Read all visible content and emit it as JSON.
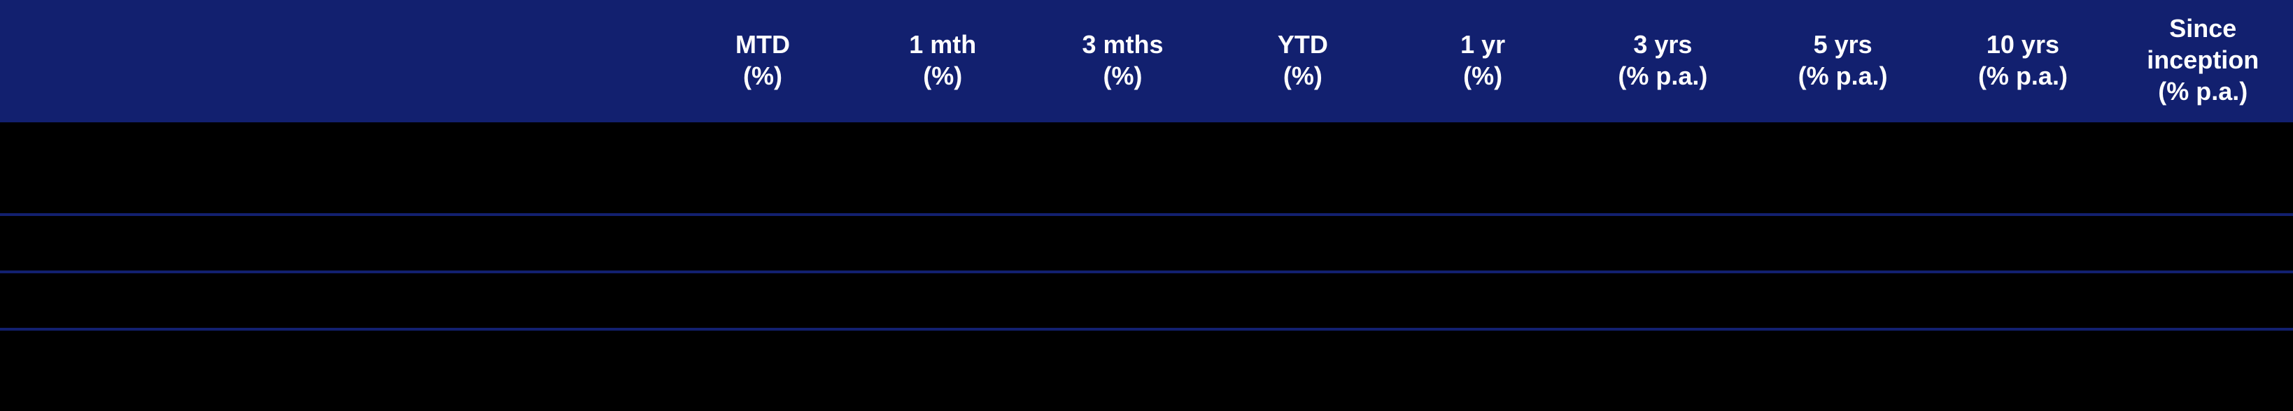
{
  "table": {
    "header_bg": "#12206f",
    "header_text_color": "#ffffff",
    "body_bg": "#000000",
    "border_color": "#12206f",
    "columns": [
      {
        "label_line1": "",
        "label_line2": "",
        "label_line3": ""
      },
      {
        "label_line1": "MTD",
        "label_line2": "(%)",
        "label_line3": ""
      },
      {
        "label_line1": "1 mth",
        "label_line2": "(%)",
        "label_line3": ""
      },
      {
        "label_line1": "3 mths",
        "label_line2": "(%)",
        "label_line3": ""
      },
      {
        "label_line1": "YTD",
        "label_line2": "(%)",
        "label_line3": ""
      },
      {
        "label_line1": "1 yr",
        "label_line2": "(%)",
        "label_line3": ""
      },
      {
        "label_line1": "3 yrs",
        "label_line2": "(% p.a.)",
        "label_line3": ""
      },
      {
        "label_line1": "5 yrs",
        "label_line2": "(% p.a.)",
        "label_line3": ""
      },
      {
        "label_line1": "10 yrs",
        "label_line2": "(% p.a.)",
        "label_line3": ""
      },
      {
        "label_line1": "Since",
        "label_line2": "inception",
        "label_line3": "(% p.a.)"
      }
    ],
    "rows": [
      {
        "label": "",
        "cells": [
          "",
          "",
          "",
          "",
          "",
          "",
          "",
          "",
          ""
        ]
      },
      {
        "label": "",
        "cells": [
          "",
          "",
          "",
          "",
          "",
          "",
          "",
          "",
          ""
        ]
      },
      {
        "label": "",
        "cells": [
          "",
          "",
          "",
          "",
          "",
          "",
          "",
          "",
          ""
        ]
      }
    ]
  }
}
